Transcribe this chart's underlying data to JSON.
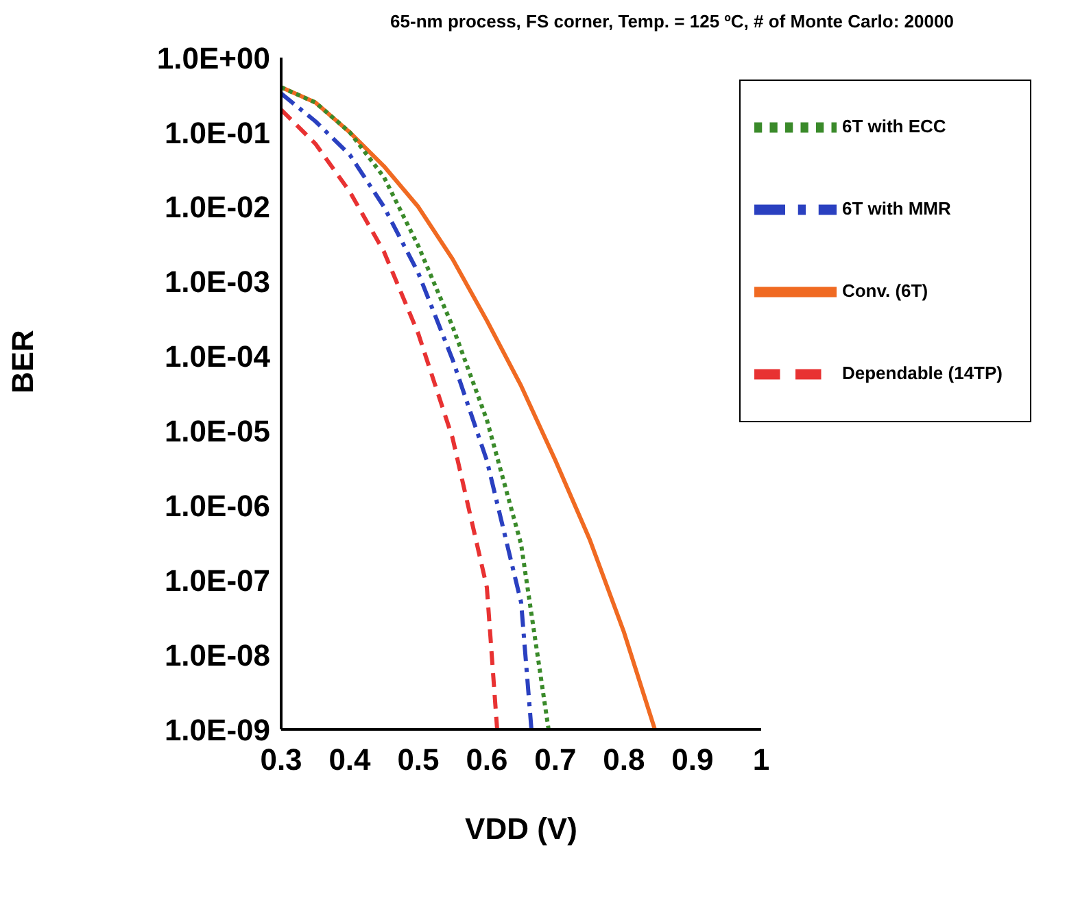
{
  "chart_data": {
    "type": "line",
    "title": "65-nm process, FS corner, Temp. = 125 ºC, # of Monte Carlo: 20000",
    "xlabel": "VDD (V)",
    "ylabel": "BER",
    "log": "y",
    "grid": false,
    "legend": "top right",
    "marker": "none",
    "xlim": [
      0.3,
      1
    ],
    "xticks": [
      0.3,
      0.4,
      0.5,
      0.6,
      0.7,
      0.8,
      0.9,
      1
    ],
    "ylim": [
      1e-09,
      1
    ],
    "yticks": [
      {
        "value": 1,
        "label": "1.0E+00"
      },
      {
        "value": 0.1,
        "label": "1.0E-01"
      },
      {
        "value": 0.01,
        "label": "1.0E-02"
      },
      {
        "value": 0.001,
        "label": "1.0E-03"
      },
      {
        "value": 0.0001,
        "label": "1.0E-04"
      },
      {
        "value": 1e-05,
        "label": "1.0E-05"
      },
      {
        "value": 1e-06,
        "label": "1.0E-06"
      },
      {
        "value": 1e-07,
        "label": "1.0E-07"
      },
      {
        "value": 1e-08,
        "label": "1.0E-08"
      },
      {
        "value": 1e-09,
        "label": "1.0E-09"
      }
    ],
    "series": [
      {
        "name": "Conv. (6T)",
        "color": "#f06a22",
        "line_style": "solid",
        "x": [
          0.3,
          0.35,
          0.4,
          0.45,
          0.5,
          0.55,
          0.6,
          0.65,
          0.7,
          0.75,
          0.8,
          0.845
        ],
        "values": [
          0.4,
          0.25,
          0.1,
          0.035,
          0.01,
          0.002,
          0.0003,
          4e-05,
          4e-06,
          3.5e-07,
          2e-08,
          1e-09
        ]
      },
      {
        "name": "6T with ECC",
        "color": "#3a8a2a",
        "line_style": "dotted",
        "x": [
          0.3,
          0.35,
          0.4,
          0.45,
          0.5,
          0.55,
          0.6,
          0.65,
          0.69
        ],
        "values": [
          0.4,
          0.25,
          0.1,
          0.025,
          0.003,
          0.00025,
          1.4e-05,
          3e-07,
          1e-09
        ]
      },
      {
        "name": "6T with MMR",
        "color": "#2a40c0",
        "line_style": "dashdot",
        "x": [
          0.3,
          0.35,
          0.4,
          0.45,
          0.5,
          0.55,
          0.6,
          0.65,
          0.665
        ],
        "values": [
          0.33,
          0.14,
          0.05,
          0.01,
          0.0013,
          9e-05,
          4e-06,
          5e-08,
          1e-09
        ]
      },
      {
        "name": "Dependable (14TP)",
        "color": "#e83232",
        "line_style": "dashed",
        "x": [
          0.3,
          0.35,
          0.4,
          0.45,
          0.5,
          0.55,
          0.6,
          0.615
        ],
        "values": [
          0.2,
          0.07,
          0.016,
          0.0025,
          0.0002,
          8e-06,
          8e-08,
          1e-09
        ]
      }
    ]
  }
}
